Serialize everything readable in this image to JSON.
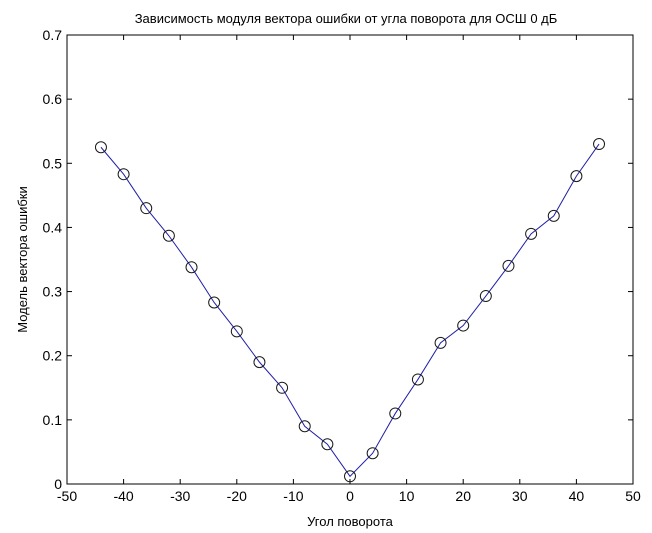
{
  "chart_data": {
    "type": "line",
    "title": "Зависимость модуля вектора ошибки от угла поворота для ОСШ 0 дБ",
    "xlabel": "Угол поворота",
    "ylabel": "Модель вектора ошибки",
    "xlim": [
      -50,
      50
    ],
    "ylim": [
      0,
      0.7
    ],
    "xticks": [
      -50,
      -40,
      -30,
      -20,
      -10,
      0,
      10,
      20,
      30,
      40,
      50
    ],
    "yticks": [
      0,
      0.1,
      0.2,
      0.3,
      0.4,
      0.5,
      0.6,
      0.7
    ],
    "xtick_labels": [
      "-50",
      "-40",
      "-30",
      "-20",
      "-10",
      "0",
      "10",
      "20",
      "30",
      "40",
      "50"
    ],
    "ytick_labels": [
      "0",
      "0.1",
      "0.2",
      "0.3",
      "0.4",
      "0.5",
      "0.6",
      "0.7"
    ],
    "grid": false,
    "series": [
      {
        "color": "#1f1fa8",
        "marker": "circle",
        "x": [
          -44,
          -40,
          -36,
          -32,
          -28,
          -24,
          -20,
          -16,
          -12,
          -8,
          -4,
          0,
          4,
          8,
          12,
          16,
          20,
          24,
          28,
          32,
          36,
          40,
          44
        ],
        "y": [
          0.525,
          0.483,
          0.43,
          0.387,
          0.338,
          0.283,
          0.238,
          0.19,
          0.15,
          0.09,
          0.062,
          0.012,
          0.048,
          0.11,
          0.163,
          0.22,
          0.247,
          0.293,
          0.34,
          0.39,
          0.418,
          0.48,
          0.53
        ]
      }
    ]
  }
}
